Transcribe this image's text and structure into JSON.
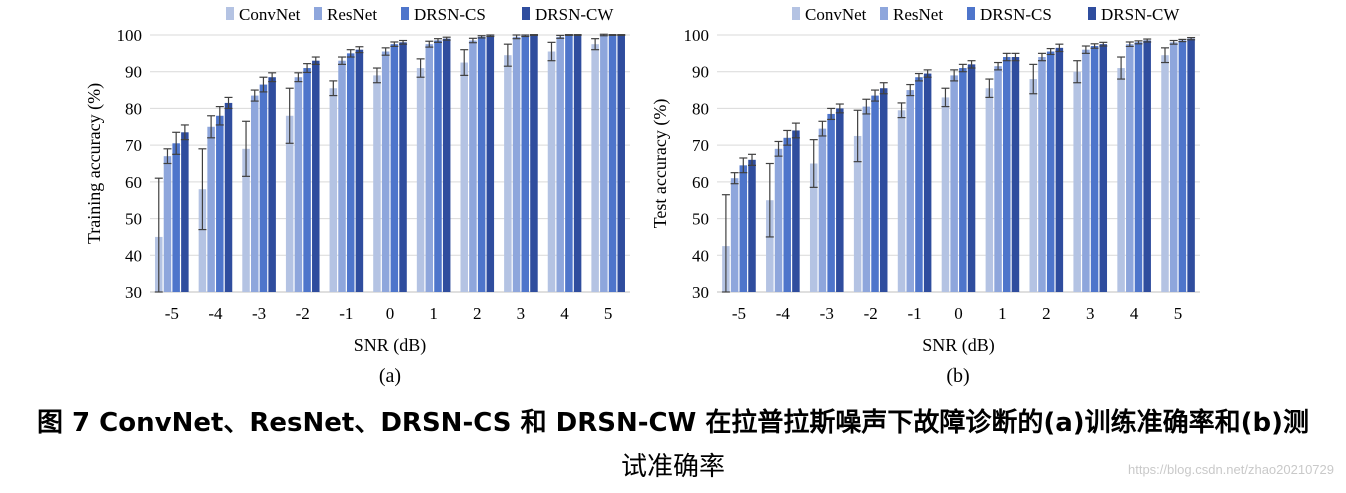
{
  "chart_data": [
    {
      "type": "bar",
      "panel_label": "(a)",
      "xlabel": "SNR (dB)",
      "ylabel": "Training accuracy (%)",
      "ylim": [
        30,
        100
      ],
      "yticks": [
        30,
        40,
        50,
        60,
        70,
        80,
        90,
        100
      ],
      "categories": [
        "-5",
        "-4",
        "-3",
        "-2",
        "-1",
        "0",
        "1",
        "2",
        "3",
        "4",
        "5"
      ],
      "legend_position": "top",
      "series": [
        {
          "name": "ConvNet",
          "color": "#b4c3e3",
          "values": [
            45,
            58,
            69,
            78,
            85.5,
            89,
            91,
            92.5,
            94.5,
            95.5,
            97.5
          ],
          "errors": [
            16,
            11,
            7.5,
            7.5,
            2,
            2,
            2.5,
            3.5,
            3,
            2.5,
            1.5
          ]
        },
        {
          "name": "ResNet",
          "color": "#8ea6dc",
          "values": [
            67,
            75,
            83.5,
            88.5,
            93,
            95.5,
            97.5,
            98.5,
            99.5,
            99.5,
            100
          ],
          "errors": [
            2,
            3,
            1.5,
            1.2,
            1,
            1,
            0.8,
            0.6,
            0.5,
            0.4,
            0.2
          ]
        },
        {
          "name": "DRSN-CS",
          "color": "#4e75cb",
          "values": [
            70.5,
            78,
            86.5,
            91,
            95,
            97.5,
            98.5,
            99.5,
            99.8,
            100,
            100
          ],
          "errors": [
            3,
            2.5,
            2,
            1.2,
            1,
            0.6,
            0.5,
            0.3,
            0.2,
            0.1,
            0.1
          ]
        },
        {
          "name": "DRSN-CW",
          "color": "#2f4d9e",
          "values": [
            73.5,
            81.5,
            88.5,
            93,
            96,
            98,
            99,
            99.8,
            100,
            100,
            100
          ],
          "errors": [
            2,
            1.5,
            1.2,
            1,
            0.8,
            0.5,
            0.4,
            0.2,
            0.1,
            0.1,
            0.1
          ]
        }
      ]
    },
    {
      "type": "bar",
      "panel_label": "(b)",
      "xlabel": "SNR (dB)",
      "ylabel": "Test accuracy (%)",
      "ylim": [
        30,
        100
      ],
      "yticks": [
        30,
        40,
        50,
        60,
        70,
        80,
        90,
        100
      ],
      "categories": [
        "-5",
        "-4",
        "-3",
        "-2",
        "-1",
        "0",
        "1",
        "2",
        "3",
        "4",
        "5"
      ],
      "legend_position": "top",
      "series": [
        {
          "name": "ConvNet",
          "color": "#b4c3e3",
          "values": [
            42.5,
            55,
            65,
            72.5,
            79.5,
            83,
            85.5,
            88,
            90,
            91,
            94.5
          ],
          "errors": [
            14,
            10,
            6.5,
            7,
            2,
            2.5,
            2.5,
            4,
            3,
            3,
            2
          ]
        },
        {
          "name": "ResNet",
          "color": "#8ea6dc",
          "values": [
            61,
            69,
            74.5,
            80.5,
            85,
            89,
            91.5,
            94,
            96,
            97.5,
            98
          ],
          "errors": [
            1.5,
            2,
            2,
            2,
            1.5,
            1.5,
            1,
            1,
            1,
            0.6,
            0.5
          ]
        },
        {
          "name": "DRSN-CS",
          "color": "#4e75cb",
          "values": [
            64.5,
            72,
            78.5,
            83.5,
            88.5,
            91,
            94,
            95.5,
            97,
            98,
            98.5
          ],
          "errors": [
            2,
            2,
            1.5,
            1.5,
            1,
            1,
            1,
            0.8,
            0.6,
            0.4,
            0.3
          ]
        },
        {
          "name": "DRSN-CW",
          "color": "#2f4d9e",
          "values": [
            66,
            74,
            80,
            85.5,
            89.5,
            92,
            94,
            96.5,
            97.5,
            98.5,
            99
          ],
          "errors": [
            1.5,
            2,
            1.2,
            1.5,
            1,
            1,
            1,
            1,
            0.5,
            0.4,
            0.3
          ]
        }
      ]
    }
  ],
  "caption": {
    "line1": "图 7 ConvNet、ResNet、DRSN-CS 和 DRSN-CW 在拉普拉斯噪声下故障诊断的(a)训练准确率和(b)测",
    "line2": "试准确率"
  },
  "watermark": "https://blog.csdn.net/zhao20210729"
}
